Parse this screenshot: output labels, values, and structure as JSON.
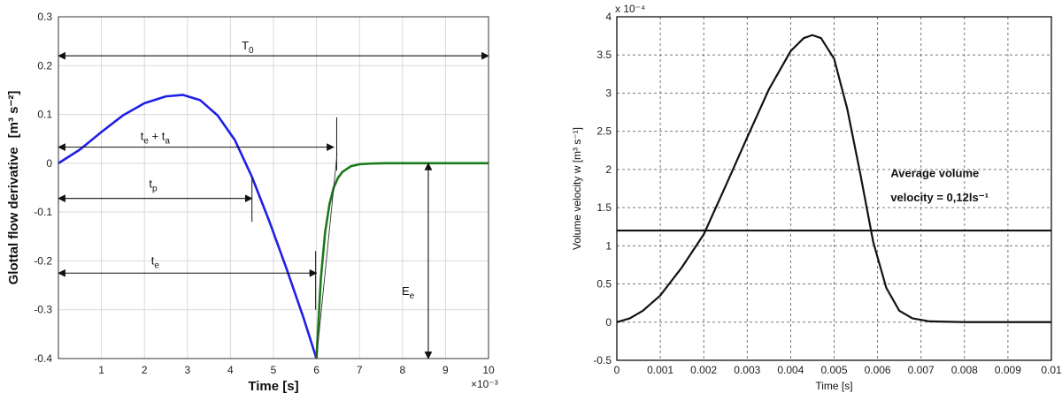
{
  "chart_data": [
    {
      "type": "line",
      "xlabel": "Time [s]",
      "x_multiplier": "×10⁻³",
      "ylabel_main": "Glottal flow derivative",
      "ylabel_units": "[m³ s⁻²]",
      "xlim": [
        0,
        10
      ],
      "ylim": [
        -0.4,
        0.3
      ],
      "xticks": [
        "1",
        "2",
        "3",
        "4",
        "5",
        "6",
        "7",
        "8",
        "9",
        "10"
      ],
      "yticks": [
        "-0.4",
        "-0.3",
        "-0.2",
        "-0.1",
        "0",
        "0.1",
        "0.2",
        "0.3"
      ],
      "grid": true,
      "series": [
        {
          "color": "#1f1fe6",
          "x": [
            0,
            0.5,
            1,
            1.5,
            2,
            2.5,
            2.9,
            3.3,
            3.7,
            4.1,
            4.5,
            4.9,
            5.3,
            5.7,
            6
          ],
          "y": [
            0,
            0.028,
            0.064,
            0.098,
            0.123,
            0.137,
            0.14,
            0.129,
            0.098,
            0.048,
            -0.028,
            -0.118,
            -0.215,
            -0.317,
            -0.4
          ]
        },
        {
          "color": "#1a7a1a",
          "x": [
            6,
            6.1,
            6.2,
            6.3,
            6.4,
            6.5,
            6.6,
            6.8,
            7,
            7.3,
            7.6,
            8,
            9,
            10
          ],
          "y": [
            -0.4,
            -0.238,
            -0.142,
            -0.085,
            -0.05,
            -0.03,
            -0.018,
            -0.006,
            -0.002,
            -0.0005,
            0,
            0,
            0,
            0
          ]
        }
      ],
      "annotations": {
        "T0": {
          "label": "T",
          "sub": "0",
          "from": 0,
          "to": 10,
          "y": 0.22
        },
        "te_ta": {
          "label_a": "t",
          "sub_a": "e",
          "plus": " + ",
          "label_b": "t",
          "sub_b": "a",
          "from": 0,
          "to": 6.4,
          "y": 0.033
        },
        "tp": {
          "label": "t",
          "sub": "p",
          "from": 0,
          "to": 4.5,
          "y": -0.072
        },
        "te": {
          "label": "t",
          "sub": "e",
          "from": 0,
          "to": 6,
          "y": -0.225
        },
        "Ee": {
          "label": "E",
          "sub": "e",
          "x": 8.6,
          "from": 0,
          "to": -0.4
        }
      }
    },
    {
      "type": "line",
      "xlabel": "Time [s]",
      "ylabel": "Volume velocity w [m³ s⁻¹]",
      "y_multiplier": "x 10⁻⁴",
      "xlim": [
        0,
        0.01
      ],
      "ylim": [
        -0.5,
        4
      ],
      "xticks": [
        "0",
        "0.001",
        "0.002",
        "0.003",
        "0.004",
        "0.005",
        "0.006",
        "0.007",
        "0.008",
        "0.009",
        "0.01"
      ],
      "yticks": [
        "-0.5",
        "0",
        "0.5",
        "1",
        "1.5",
        "2",
        "2.5",
        "3",
        "3.5",
        "4"
      ],
      "grid": true,
      "series": [
        {
          "color": "#111111",
          "x": [
            0,
            0.0003,
            0.0006,
            0.001,
            0.0015,
            0.002,
            0.0025,
            0.003,
            0.0035,
            0.004,
            0.0043,
            0.0045,
            0.0047,
            0.005,
            0.0053,
            0.0056,
            0.0059,
            0.0062,
            0.0065,
            0.0068,
            0.0072,
            0.008,
            0.01
          ],
          "y": [
            0,
            0.05,
            0.15,
            0.35,
            0.72,
            1.15,
            1.78,
            2.42,
            3.05,
            3.55,
            3.72,
            3.76,
            3.72,
            3.45,
            2.8,
            1.95,
            1.05,
            0.45,
            0.15,
            0.05,
            0.01,
            0,
            0
          ]
        },
        {
          "color": "#111111",
          "x": [
            0,
            0.01
          ],
          "y": [
            1.2,
            1.2
          ]
        }
      ],
      "annotation": {
        "line1": "Average volume",
        "line2": "velocity = 0,12ls⁻¹"
      }
    }
  ]
}
